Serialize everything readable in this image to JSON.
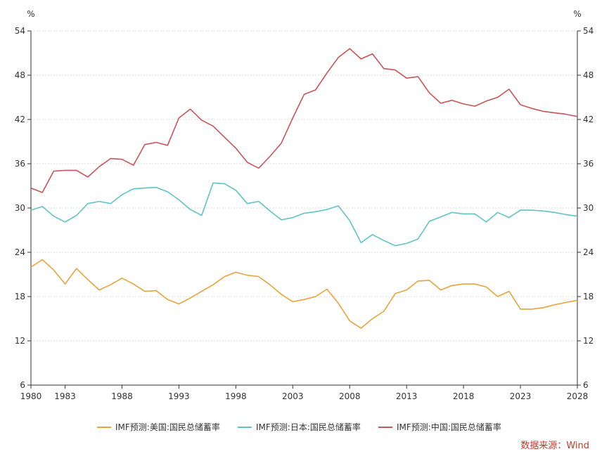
{
  "chart_data": {
    "type": "line",
    "unit_left": "%",
    "unit_right": "%",
    "ylim": [
      6,
      54
    ],
    "yticks": [
      6,
      12,
      18,
      24,
      30,
      36,
      42,
      48,
      54
    ],
    "xlim": [
      1980,
      2028
    ],
    "xticks": [
      1980,
      1983,
      1988,
      1993,
      1998,
      2003,
      2008,
      2013,
      2018,
      2023,
      2028
    ],
    "xtick_labels": [
      "1980",
      "1983",
      "1988",
      "1993",
      "1998",
      "2003",
      "2008",
      "2013",
      "2018",
      "2023",
      "2028"
    ],
    "grid": "horizontal",
    "legend_position": "bottom",
    "x": [
      1980,
      1981,
      1982,
      1983,
      1984,
      1985,
      1986,
      1987,
      1988,
      1989,
      1990,
      1991,
      1992,
      1993,
      1994,
      1995,
      1996,
      1997,
      1998,
      1999,
      2000,
      2001,
      2002,
      2003,
      2004,
      2005,
      2006,
      2007,
      2008,
      2009,
      2010,
      2011,
      2012,
      2013,
      2014,
      2015,
      2016,
      2017,
      2018,
      2019,
      2020,
      2021,
      2022,
      2023,
      2024,
      2025,
      2026,
      2027,
      2028
    ],
    "series": [
      {
        "name": "IMF预测:美国:国民总储蓄率",
        "color": "#e8a33a",
        "values": [
          22.0,
          23.0,
          21.6,
          19.7,
          21.8,
          20.3,
          18.9,
          19.6,
          20.5,
          19.7,
          18.7,
          18.8,
          17.6,
          17.0,
          17.8,
          18.7,
          19.6,
          20.7,
          21.3,
          20.9,
          20.7,
          19.6,
          18.3,
          17.3,
          17.6,
          18.0,
          19.0,
          17.1,
          14.7,
          13.7,
          15.0,
          16.0,
          18.4,
          18.9,
          20.1,
          20.2,
          18.9,
          19.5,
          19.7,
          19.7,
          19.3,
          18.0,
          18.7,
          16.3,
          16.3,
          16.5,
          16.9,
          17.2,
          17.5
        ]
      },
      {
        "name": "IMF预测:日本:国民总储蓄率",
        "color": "#5ec4c4",
        "values": [
          29.7,
          30.2,
          28.9,
          28.1,
          29.0,
          30.6,
          30.9,
          30.6,
          31.8,
          32.6,
          32.7,
          32.8,
          32.2,
          31.1,
          29.8,
          29.0,
          33.4,
          33.3,
          32.4,
          30.6,
          30.9,
          29.6,
          28.4,
          28.7,
          29.3,
          29.5,
          29.8,
          30.3,
          28.3,
          25.3,
          26.4,
          25.6,
          24.9,
          25.2,
          25.8,
          28.2,
          28.8,
          29.4,
          29.2,
          29.2,
          28.1,
          29.4,
          28.7,
          29.7,
          29.7,
          29.6,
          29.4,
          29.1,
          28.9
        ]
      },
      {
        "name": "IMF预测:中国:国民总储蓄率",
        "color": "#c9545a",
        "values": [
          32.7,
          32.1,
          35.0,
          35.1,
          35.1,
          34.2,
          35.6,
          36.7,
          36.6,
          35.8,
          38.6,
          38.9,
          38.5,
          42.2,
          43.4,
          41.9,
          41.1,
          39.6,
          38.1,
          36.2,
          35.4,
          37.0,
          38.8,
          42.2,
          45.4,
          46.0,
          48.3,
          50.4,
          51.6,
          50.2,
          50.9,
          48.9,
          48.7,
          47.6,
          47.8,
          45.6,
          44.2,
          44.6,
          44.1,
          43.8,
          44.5,
          45.0,
          46.1,
          44.0,
          43.5,
          43.1,
          42.9,
          42.7,
          42.4
        ]
      }
    ]
  },
  "source_label": "数据来源：Wind"
}
